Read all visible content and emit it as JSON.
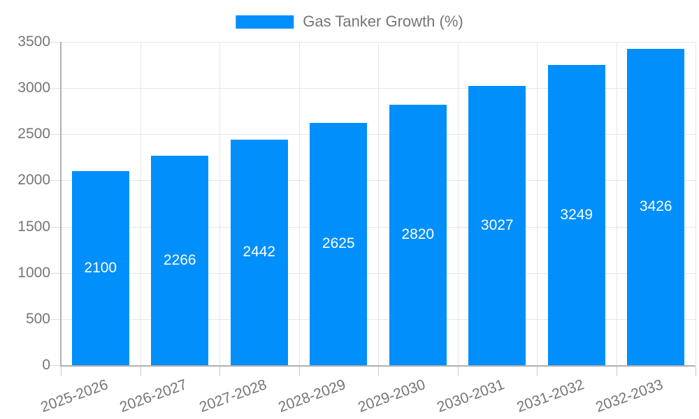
{
  "legend": {
    "label": "Gas Tanker Growth (%)",
    "swatch_color": "#008FFB"
  },
  "chart_data": {
    "type": "bar",
    "title": "Gas Tanker Growth (%)",
    "categories": [
      "2025-2026",
      "2026-2027",
      "2027-2028",
      "2028-2029",
      "2029-2030",
      "2030-2031",
      "2031-2032",
      "2032-2033"
    ],
    "values": [
      2100,
      2266,
      2442,
      2625,
      2820,
      3027,
      3249,
      3426
    ],
    "series_name": "Gas Tanker Growth (%)",
    "xlabel": "",
    "ylabel": "",
    "ylim": [
      0,
      3500
    ],
    "yticks": [
      0,
      500,
      1000,
      1500,
      2000,
      2500,
      3000,
      3500
    ],
    "grid": true,
    "legend_position": "top",
    "x_label_rotation_deg": -20,
    "bar_color": "#008FFB",
    "value_label_color": "#ffffff",
    "axis_text_color": "#757575",
    "gridline_color": "#e6e6e6",
    "axis_line_color": "#b0b0b0"
  }
}
